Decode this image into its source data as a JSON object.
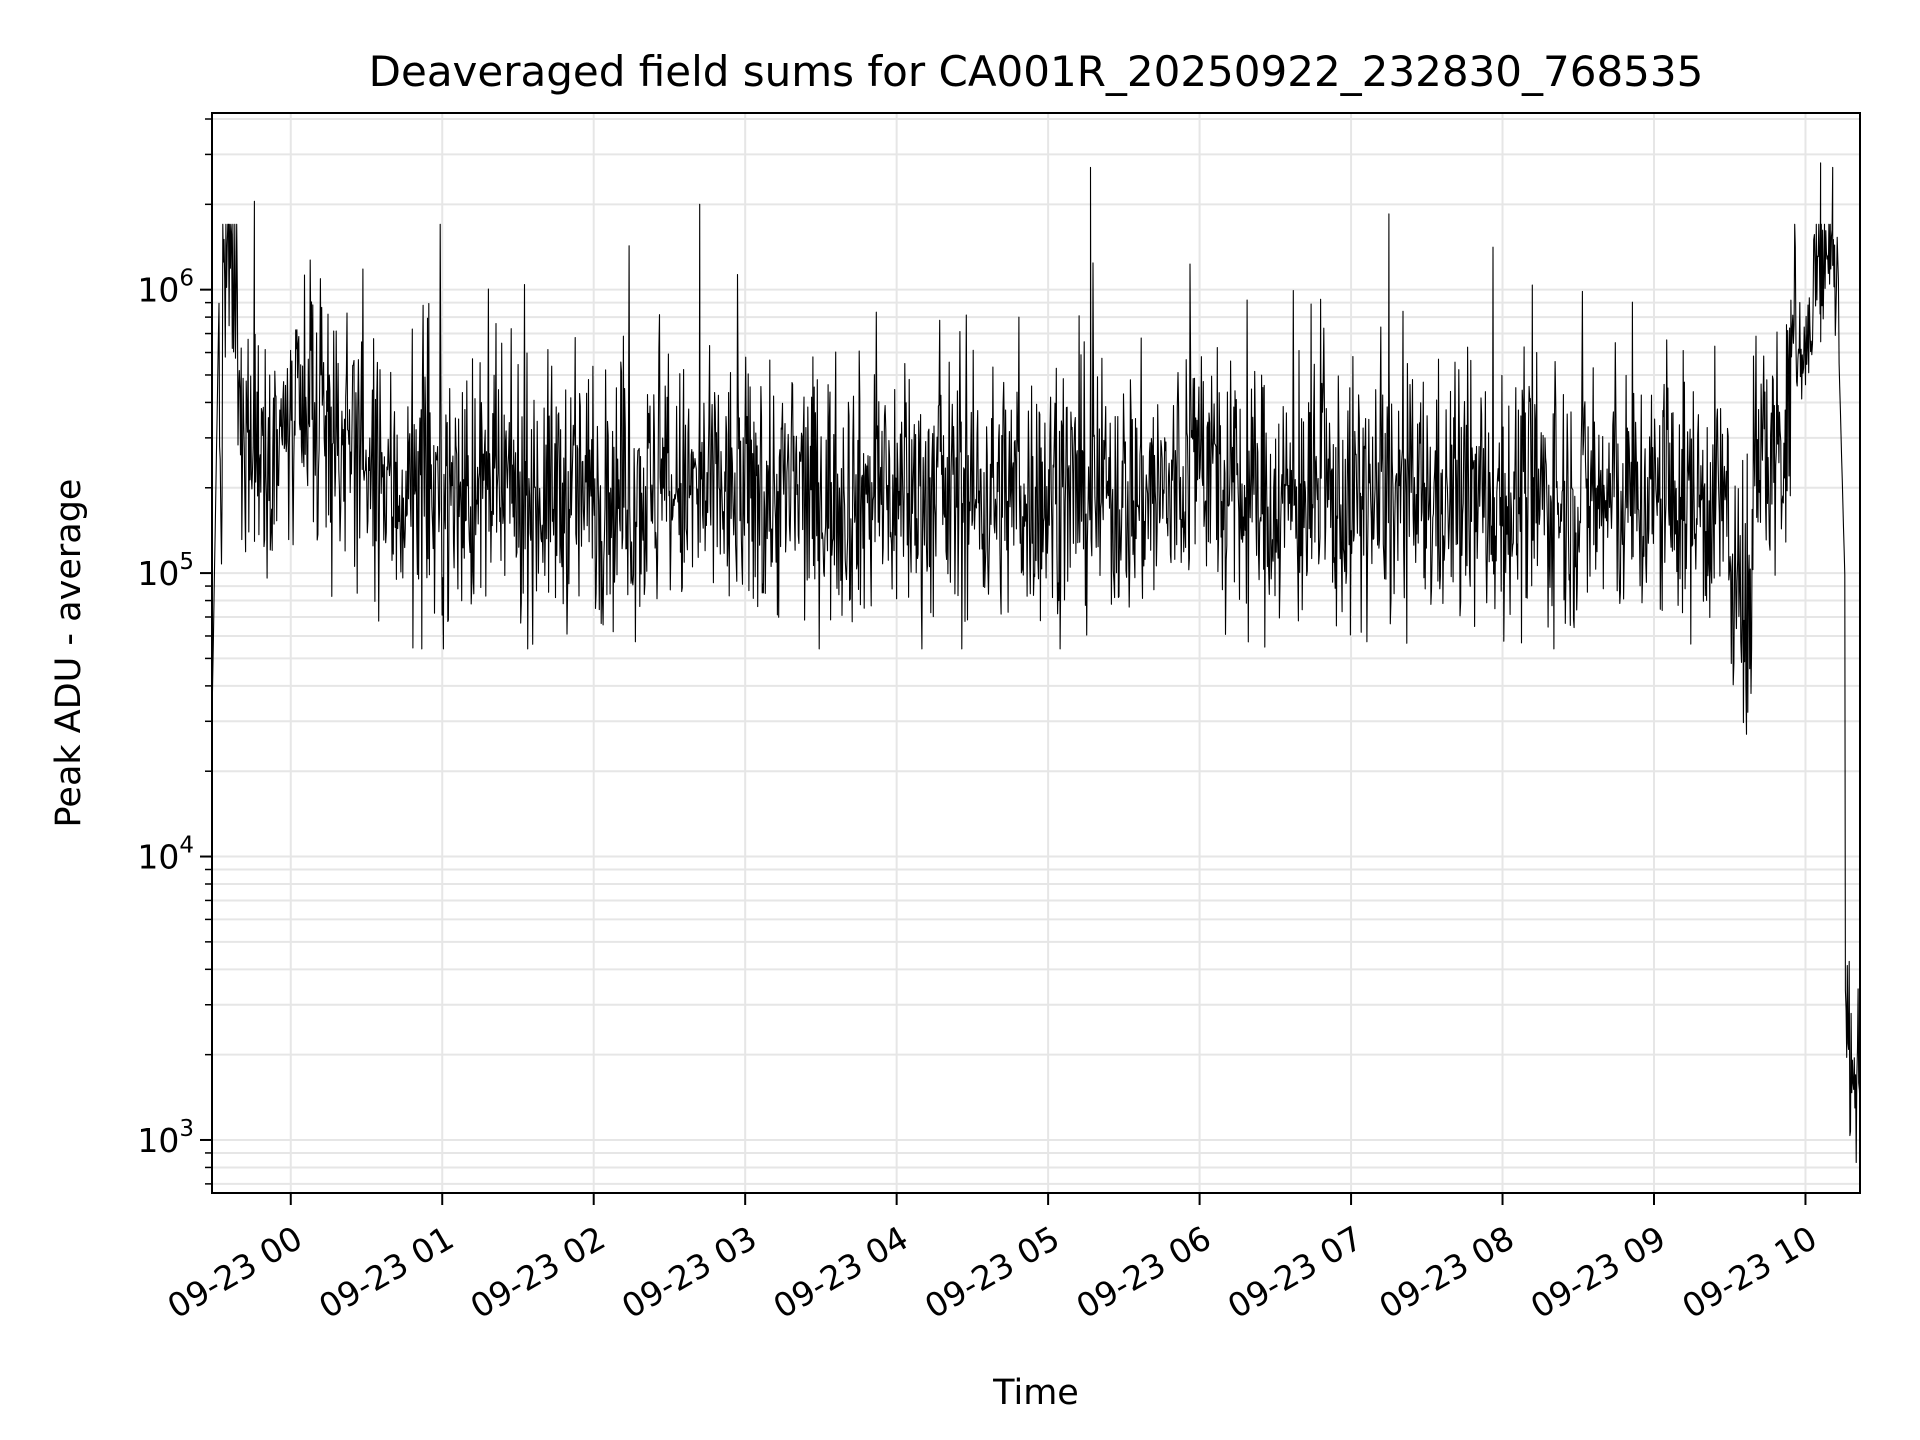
{
  "chart_data": {
    "type": "line",
    "title": "Deaveraged field sums for CA001R_20250922_232830_768535",
    "xlabel": "Time",
    "ylabel": "Peak ADU - average",
    "yscale": "log",
    "ylim": [
      650,
      4200000
    ],
    "xlim_hours": [
      -0.52,
      10.36
    ],
    "grid": true,
    "line_color": "#000000",
    "x_ticks": [
      {
        "hour": 0,
        "label": "09-23 00"
      },
      {
        "hour": 1,
        "label": "09-23 01"
      },
      {
        "hour": 2,
        "label": "09-23 02"
      },
      {
        "hour": 3,
        "label": "09-23 03"
      },
      {
        "hour": 4,
        "label": "09-23 04"
      },
      {
        "hour": 5,
        "label": "09-23 05"
      },
      {
        "hour": 6,
        "label": "09-23 06"
      },
      {
        "hour": 7,
        "label": "09-23 07"
      },
      {
        "hour": 8,
        "label": "09-23 08"
      },
      {
        "hour": 9,
        "label": "09-23 09"
      },
      {
        "hour": 10,
        "label": "09-23 10"
      }
    ],
    "y_ticks": [
      {
        "value": 1000,
        "base": "10",
        "exp": "3"
      },
      {
        "value": 10000,
        "base": "10",
        "exp": "4"
      },
      {
        "value": 100000,
        "base": "10",
        "exp": "5"
      },
      {
        "value": 1000000,
        "base": "10",
        "exp": "6"
      }
    ],
    "series_profile": {
      "name": "deaveraged field sum",
      "segments": [
        {
          "start_hour": -0.52,
          "end_hour": -0.45,
          "median": 200000,
          "note": "rise from ~3e4"
        },
        {
          "start_hour": -0.45,
          "end_hour": -0.35,
          "median": 1100000
        },
        {
          "start_hour": -0.35,
          "end_hour": 0.5,
          "median": 300000
        },
        {
          "start_hour": 0.5,
          "end_hour": 5.9,
          "median": 190000
        },
        {
          "start_hour": 5.9,
          "end_hour": 6.1,
          "median": 260000
        },
        {
          "start_hour": 6.1,
          "end_hour": 9.5,
          "median": 180000
        },
        {
          "start_hour": 9.5,
          "end_hour": 9.65,
          "median": 70000,
          "note": "dip to ~2.6e4"
        },
        {
          "start_hour": 9.65,
          "end_hour": 9.9,
          "median": 260000
        },
        {
          "start_hour": 9.9,
          "end_hour": 10.05,
          "median": 650000
        },
        {
          "start_hour": 10.05,
          "end_hour": 10.22,
          "median": 1200000
        },
        {
          "start_hour": 10.22,
          "end_hour": 10.36,
          "median": 4000,
          "note": "drop to ~1e3"
        }
      ],
      "typical_min": 60000,
      "typical_max": 1700000,
      "notable_spikes": [
        {
          "hour": -0.24,
          "value": 2050000
        },
        {
          "hour": 2.7,
          "value": 2000000
        },
        {
          "hour": 5.28,
          "value": 2700000
        },
        {
          "hour": 7.25,
          "value": 1850000
        },
        {
          "hour": 10.1,
          "value": 2800000
        },
        {
          "hour": 10.18,
          "value": 2700000
        }
      ]
    }
  }
}
